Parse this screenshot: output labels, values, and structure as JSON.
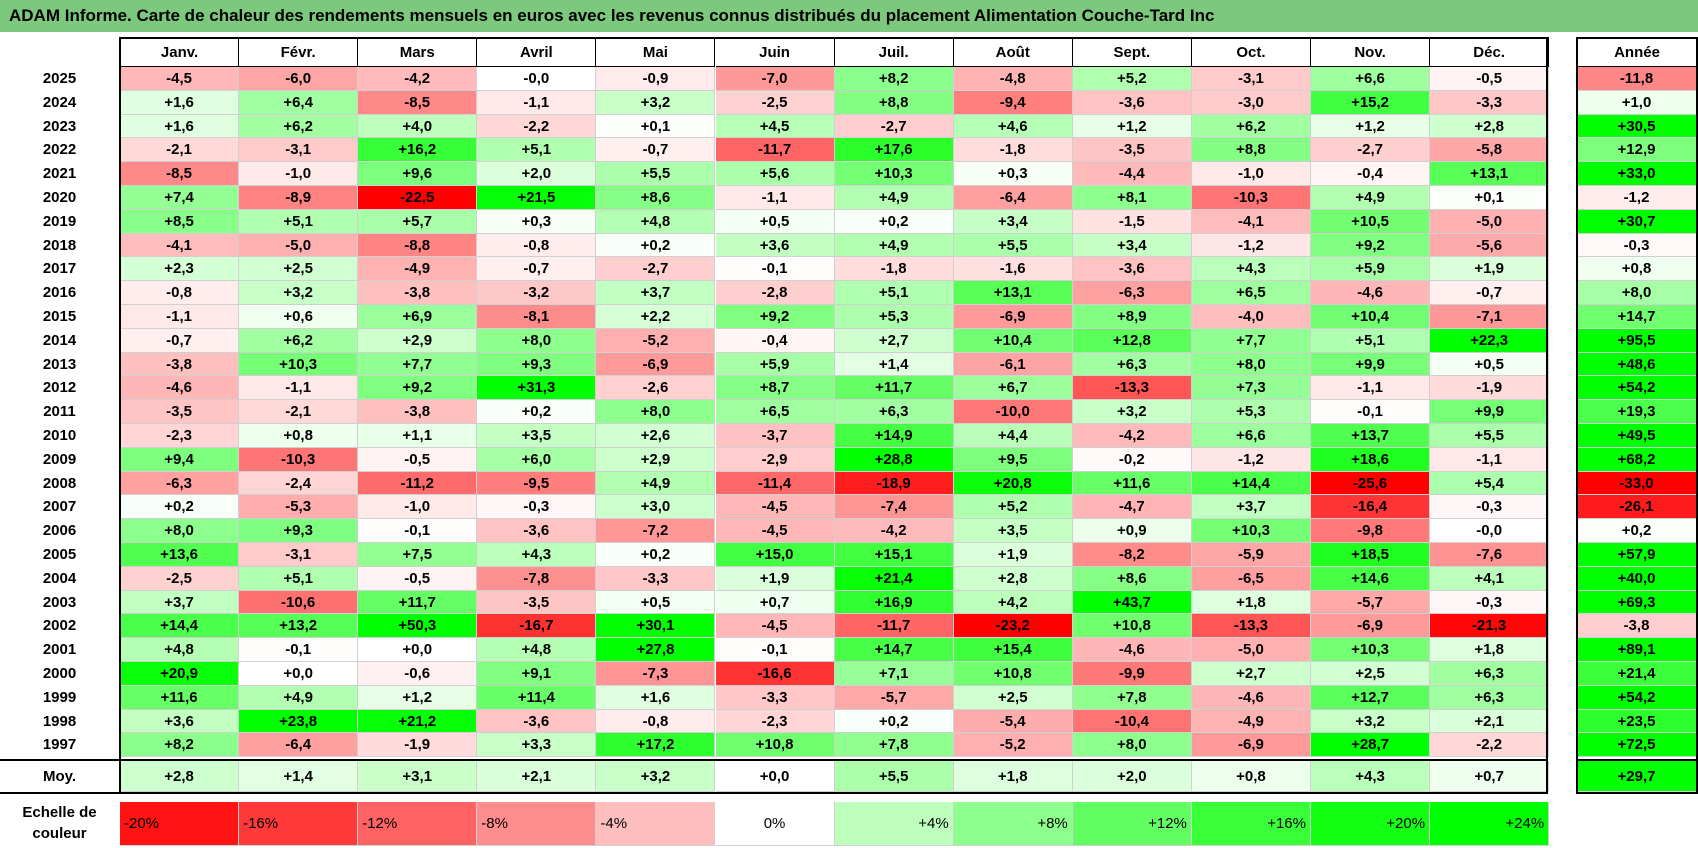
{
  "title": "ADAM Informe. Carte de chaleur des rendements mensuels en euros avec les revenus connus distribués du placement Alimentation Couche-Tard Inc",
  "chart_data": {
    "type": "heatmap",
    "title": "ADAM Informe. Carte de chaleur des rendements mensuels en euros avec les revenus connus distribués du placement Alimentation Couche-Tard Inc",
    "columns": [
      "Janv.",
      "Févr.",
      "Mars",
      "Avril",
      "Mai",
      "Juin",
      "Juil.",
      "Août",
      "Sept.",
      "Oct.",
      "Nov.",
      "Déc."
    ],
    "annual_header": "Année",
    "rows": [
      {
        "year": "2025",
        "values": [
          "-4,5",
          "-6,0",
          "-4,2",
          "-0,0",
          "-0,9",
          "-7,0",
          "+8,2",
          "-4,8",
          "+5,2",
          "-3,1",
          "+6,6",
          "-0,5"
        ],
        "annual": "-11,8"
      },
      {
        "year": "2024",
        "values": [
          "+1,6",
          "+6,4",
          "-8,5",
          "-1,1",
          "+3,2",
          "-2,5",
          "+8,8",
          "-9,4",
          "-3,6",
          "-3,0",
          "+15,2",
          "-3,3"
        ],
        "annual": "+1,0"
      },
      {
        "year": "2023",
        "values": [
          "+1,6",
          "+6,2",
          "+4,0",
          "-2,2",
          "+0,1",
          "+4,5",
          "-2,7",
          "+4,6",
          "+1,2",
          "+6,2",
          "+1,2",
          "+2,8"
        ],
        "annual": "+30,5"
      },
      {
        "year": "2022",
        "values": [
          "-2,1",
          "-3,1",
          "+16,2",
          "+5,1",
          "-0,7",
          "-11,7",
          "+17,6",
          "-1,8",
          "-3,5",
          "+8,8",
          "-2,7",
          "-5,8"
        ],
        "annual": "+12,9"
      },
      {
        "year": "2021",
        "values": [
          "-8,5",
          "-1,0",
          "+9,6",
          "+2,0",
          "+5,5",
          "+5,6",
          "+10,3",
          "+0,3",
          "-4,4",
          "-1,0",
          "-0,4",
          "+13,1"
        ],
        "annual": "+33,0"
      },
      {
        "year": "2020",
        "values": [
          "+7,4",
          "-8,9",
          "-22,5",
          "+21,5",
          "+8,6",
          "-1,1",
          "+4,9",
          "-6,4",
          "+8,1",
          "-10,3",
          "+4,9",
          "+0,1"
        ],
        "annual": "-1,2"
      },
      {
        "year": "2019",
        "values": [
          "+8,5",
          "+5,1",
          "+5,7",
          "+0,3",
          "+4,8",
          "+0,5",
          "+0,2",
          "+3,4",
          "-1,5",
          "-4,1",
          "+10,5",
          "-5,0"
        ],
        "annual": "+30,7"
      },
      {
        "year": "2018",
        "values": [
          "-4,1",
          "-5,0",
          "-8,8",
          "-0,8",
          "+0,2",
          "+3,6",
          "+4,9",
          "+5,5",
          "+3,4",
          "-1,2",
          "+9,2",
          "-5,6"
        ],
        "annual": "-0,3"
      },
      {
        "year": "2017",
        "values": [
          "+2,3",
          "+2,5",
          "-4,9",
          "-0,7",
          "-2,7",
          "-0,1",
          "-1,8",
          "-1,6",
          "-3,6",
          "+4,3",
          "+5,9",
          "+1,9"
        ],
        "annual": "+0,8"
      },
      {
        "year": "2016",
        "values": [
          "-0,8",
          "+3,2",
          "-3,8",
          "-3,2",
          "+3,7",
          "-2,8",
          "+5,1",
          "+13,1",
          "-6,3",
          "+6,5",
          "-4,6",
          "-0,7"
        ],
        "annual": "+8,0"
      },
      {
        "year": "2015",
        "values": [
          "-1,1",
          "+0,6",
          "+6,9",
          "-8,1",
          "+2,2",
          "+9,2",
          "+5,3",
          "-6,9",
          "+8,9",
          "-4,0",
          "+10,4",
          "-7,1"
        ],
        "annual": "+14,7"
      },
      {
        "year": "2014",
        "values": [
          "-0,7",
          "+6,2",
          "+2,9",
          "+8,0",
          "-5,2",
          "-0,4",
          "+2,7",
          "+10,4",
          "+12,8",
          "+7,7",
          "+5,1",
          "+22,3"
        ],
        "annual": "+95,5"
      },
      {
        "year": "2013",
        "values": [
          "-3,8",
          "+10,3",
          "+7,7",
          "+9,3",
          "-6,9",
          "+5,9",
          "+1,4",
          "-6,1",
          "+6,3",
          "+8,0",
          "+9,9",
          "+0,5"
        ],
        "annual": "+48,6"
      },
      {
        "year": "2012",
        "values": [
          "-4,6",
          "-1,1",
          "+9,2",
          "+31,3",
          "-2,6",
          "+8,7",
          "+11,7",
          "+6,7",
          "-13,3",
          "+7,3",
          "-1,1",
          "-1,9"
        ],
        "annual": "+54,2"
      },
      {
        "year": "2011",
        "values": [
          "-3,5",
          "-2,1",
          "-3,8",
          "+0,2",
          "+8,0",
          "+6,5",
          "+6,3",
          "-10,0",
          "+3,2",
          "+5,3",
          "-0,1",
          "+9,9"
        ],
        "annual": "+19,3"
      },
      {
        "year": "2010",
        "values": [
          "-2,3",
          "+0,8",
          "+1,1",
          "+3,5",
          "+2,6",
          "-3,7",
          "+14,9",
          "+4,4",
          "-4,2",
          "+6,6",
          "+13,7",
          "+5,5"
        ],
        "annual": "+49,5"
      },
      {
        "year": "2009",
        "values": [
          "+9,4",
          "-10,3",
          "-0,5",
          "+6,0",
          "+2,9",
          "-2,9",
          "+28,8",
          "+9,5",
          "-0,2",
          "-1,2",
          "+18,6",
          "-1,1"
        ],
        "annual": "+68,2"
      },
      {
        "year": "2008",
        "values": [
          "-6,3",
          "-2,4",
          "-11,2",
          "-9,5",
          "+4,9",
          "-11,4",
          "-18,9",
          "+20,8",
          "+11,6",
          "+14,4",
          "-25,6",
          "+5,4"
        ],
        "annual": "-33,0"
      },
      {
        "year": "2007",
        "values": [
          "+0,2",
          "-5,3",
          "-1,0",
          "-0,3",
          "+3,0",
          "-4,5",
          "-7,4",
          "+5,2",
          "-4,7",
          "+3,7",
          "-16,4",
          "-0,3"
        ],
        "annual": "-26,1"
      },
      {
        "year": "2006",
        "values": [
          "+8,0",
          "+9,3",
          "-0,1",
          "-3,6",
          "-7,2",
          "-4,5",
          "-4,2",
          "+3,5",
          "+0,9",
          "+10,3",
          "-9,8",
          "-0,0"
        ],
        "annual": "+0,2"
      },
      {
        "year": "2005",
        "values": [
          "+13,6",
          "-3,1",
          "+7,5",
          "+4,3",
          "+0,2",
          "+15,0",
          "+15,1",
          "+1,9",
          "-8,2",
          "-5,9",
          "+18,5",
          "-7,6"
        ],
        "annual": "+57,9"
      },
      {
        "year": "2004",
        "values": [
          "-2,5",
          "+5,1",
          "-0,5",
          "-7,8",
          "-3,3",
          "+1,9",
          "+21,4",
          "+2,8",
          "+8,6",
          "-6,5",
          "+14,6",
          "+4,1"
        ],
        "annual": "+40,0"
      },
      {
        "year": "2003",
        "values": [
          "+3,7",
          "-10,6",
          "+11,7",
          "-3,5",
          "+0,5",
          "+0,7",
          "+16,9",
          "+4,2",
          "+43,7",
          "+1,8",
          "-5,7",
          "-0,3"
        ],
        "annual": "+69,3"
      },
      {
        "year": "2002",
        "values": [
          "+14,4",
          "+13,2",
          "+50,3",
          "-16,7",
          "+30,1",
          "-4,5",
          "-11,7",
          "-23,2",
          "+10,8",
          "-13,3",
          "-6,9",
          "-21,3"
        ],
        "annual": "-3,8"
      },
      {
        "year": "2001",
        "values": [
          "+4,8",
          "-0,1",
          "+0,0",
          "+4,8",
          "+27,8",
          "-0,1",
          "+14,7",
          "+15,4",
          "-4,6",
          "-5,0",
          "+10,3",
          "+1,8"
        ],
        "annual": "+89,1"
      },
      {
        "year": "2000",
        "values": [
          "+20,9",
          "+0,0",
          "-0,6",
          "+9,1",
          "-7,3",
          "-16,6",
          "+7,1",
          "+10,8",
          "-9,9",
          "+2,7",
          "+2,5",
          "+6,3"
        ],
        "annual": "+21,4"
      },
      {
        "year": "1999",
        "values": [
          "+11,6",
          "+4,9",
          "+1,2",
          "+11,4",
          "+1,6",
          "-3,3",
          "-5,7",
          "+2,5",
          "+7,8",
          "-4,6",
          "+12,7",
          "+6,3"
        ],
        "annual": "+54,2"
      },
      {
        "year": "1998",
        "values": [
          "+3,6",
          "+23,8",
          "+21,2",
          "-3,6",
          "-0,8",
          "-2,3",
          "+0,2",
          "-5,4",
          "-10,4",
          "-4,9",
          "+3,2",
          "+2,1"
        ],
        "annual": "+23,5"
      },
      {
        "year": "1997",
        "values": [
          "+8,2",
          "-6,4",
          "-1,9",
          "+3,3",
          "+17,2",
          "+10,8",
          "+7,8",
          "-5,2",
          "+8,0",
          "-6,9",
          "+28,7",
          "-2,2"
        ],
        "annual": "+72,5"
      }
    ],
    "average": {
      "label": "Moy.",
      "values": [
        "+2,8",
        "+1,4",
        "+3,1",
        "+2,1",
        "+3,2",
        "+0,0",
        "+5,5",
        "+1,8",
        "+2,0",
        "+0,8",
        "+4,3",
        "+0,7"
      ],
      "annual": "+29,7"
    },
    "scale": {
      "label": "Echelle de couleur",
      "steps": [
        "-20%",
        "-16%",
        "-12%",
        "-8%",
        "-4%",
        "0%",
        "+4%",
        "+8%",
        "+12%",
        "+16%",
        "+20%",
        "+24%"
      ]
    },
    "colors": {
      "title_bg": "#7cc87c",
      "negative_max": "#ff0000",
      "neutral": "#ffffff",
      "positive_max": "#00ff00"
    }
  }
}
